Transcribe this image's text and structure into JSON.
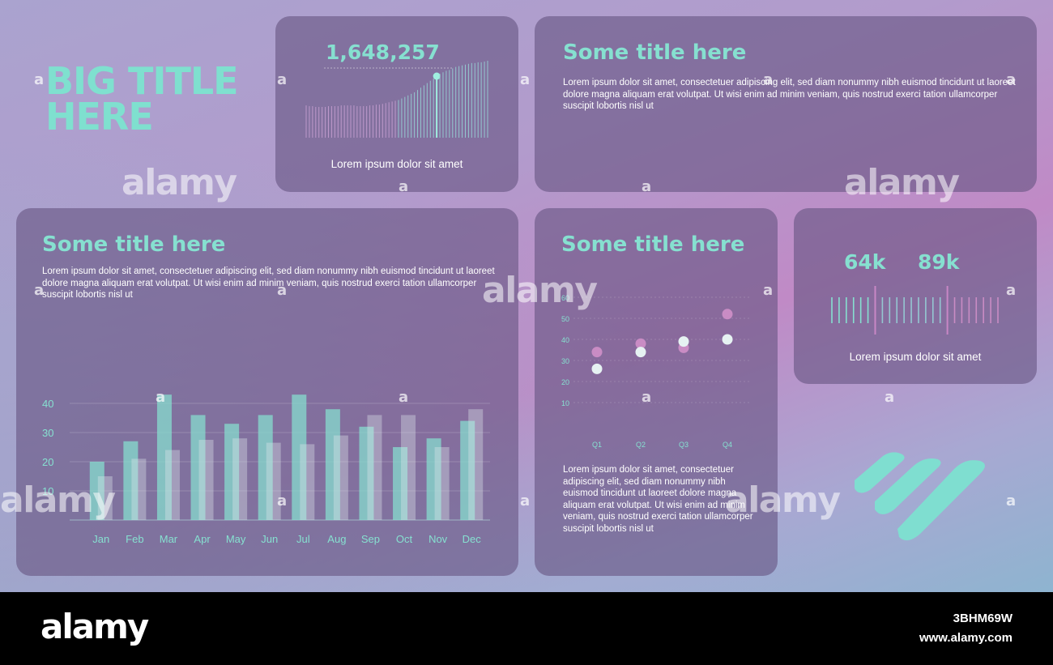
{
  "big_title": "BIG TITLE HERE",
  "colors": {
    "teal": "#86e0d0",
    "pink": "#c98cc4",
    "white_point": "#e6f2f2",
    "card_bg": "#685682"
  },
  "kpi_card": {
    "value": "1,648,257",
    "caption": "Lorem ipsum dolor sit amet"
  },
  "top_text_card": {
    "title": "Some title here",
    "text": "Lorem ipsum dolor sit amet, consectetuer adipiscing elit, sed diam nonummy nibh euismod tincidunt ut laoreet dolore magna aliquam erat volutpat. Ut wisi enim ad minim veniam, quis nostrud exerci tation ullamcorper suscipit lobortis nisl ut"
  },
  "bar_card": {
    "title": "Some title here",
    "text": "Lorem ipsum dolor sit amet, consectetuer adipiscing elit, sed diam nonummy nibh euismod tincidunt ut laoreet dolore magna aliquam erat volutpat. Ut wisi enim ad minim veniam, quis nostrud exerci tation ullamcorper suscipit lobortis nisl ut"
  },
  "scatter_card": {
    "title": "Some title here",
    "text": "Lorem ipsum dolor sit amet, consectetuer adipiscing elit, sed diam nonummy nibh euismod tincidunt ut laoreet dolore magna aliquam erat volutpat. Ut wisi enim ad minim veniam, quis nostrud exerci tation ullamcorper suscipit lobortis nisl ut"
  },
  "gauge_card": {
    "value_1": "64k",
    "value_2": "89k",
    "caption": "Lorem ipsum dolor sit amet"
  },
  "watermark": {
    "brand": "alamy",
    "letter": "a",
    "image_id": "3BHM69W",
    "url": "www.alamy.com"
  },
  "chart_data": [
    {
      "type": "bar",
      "categories": [
        "Jan",
        "Feb",
        "Mar",
        "Apr",
        "May",
        "Jun",
        "Jul",
        "Aug",
        "Sep",
        "Oct",
        "Nov",
        "Dec"
      ],
      "series": [
        {
          "values": [
            20,
            27,
            43,
            36,
            33,
            36,
            43,
            38,
            32,
            25,
            28,
            34
          ]
        },
        {
          "values": [
            15,
            21,
            24,
            27.5,
            28,
            26.5,
            26,
            29,
            36,
            36,
            25,
            38
          ]
        }
      ],
      "yticks": [
        10,
        20,
        30,
        40
      ],
      "ylim": [
        0,
        45
      ],
      "grid": true
    },
    {
      "type": "scatter",
      "categories": [
        "Q1",
        "Q2",
        "Q3",
        "Q4"
      ],
      "series": [
        {
          "values": [
            34,
            38,
            36,
            52
          ]
        },
        {
          "values": [
            26,
            34,
            39,
            40
          ]
        }
      ],
      "yticks": [
        10,
        20,
        30,
        40,
        50,
        60
      ],
      "ylim": [
        0,
        65
      ],
      "grid": true
    },
    {
      "type": "area",
      "title": "1,648,257",
      "values": [
        0.42,
        0.41,
        0.41,
        0.4,
        0.4,
        0.4,
        0.4,
        0.41,
        0.41,
        0.41,
        0.41,
        0.42,
        0.42,
        0.42,
        0.42,
        0.42,
        0.41,
        0.41,
        0.41,
        0.41,
        0.42,
        0.42,
        0.43,
        0.43,
        0.44,
        0.45,
        0.46,
        0.47,
        0.48,
        0.49,
        0.51,
        0.53,
        0.55,
        0.57,
        0.59,
        0.62,
        0.65,
        0.68,
        0.71,
        0.74,
        0.77,
        0.8,
        0.83,
        0.85,
        0.87,
        0.88,
        0.9,
        0.92,
        0.93,
        0.94,
        0.95,
        0.96,
        0.97,
        0.97,
        0.98,
        0.98,
        0.99,
        1.0
      ],
      "highlight_index": 41
    }
  ]
}
